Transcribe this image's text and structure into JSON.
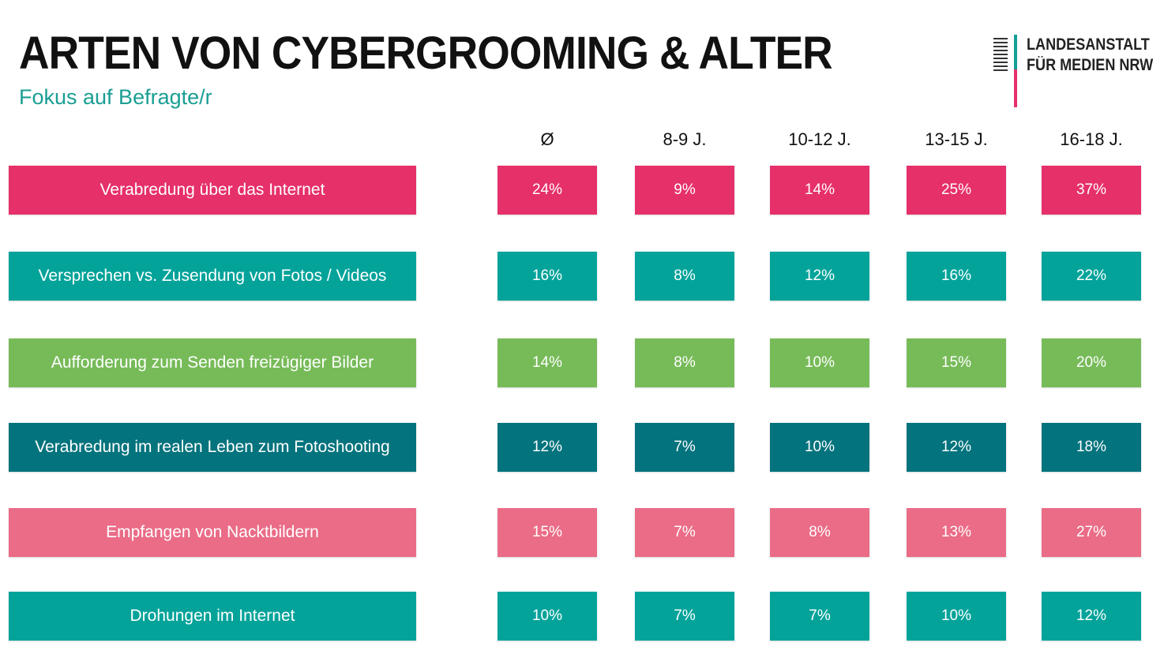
{
  "header": {
    "title": "ARTEN VON CYBERGROOMING & ALTER",
    "subtitle": "Fokus auf Befragte/r"
  },
  "logo": {
    "line1": "LANDESANSTALT",
    "line2": "FÜR MEDIEN NRW"
  },
  "chart_data": {
    "type": "table",
    "columns": [
      "Ø",
      "8-9 J.",
      "10-12 J.",
      "13-15 J.",
      "16-18 J."
    ],
    "rows": [
      {
        "label": "Verabredung über das Internet",
        "color": "#e6306a",
        "values": [
          "24%",
          "9%",
          "14%",
          "25%",
          "37%"
        ]
      },
      {
        "label": "Versprechen vs. Zusendung von Fotos / Videos",
        "color": "#03a39a",
        "values": [
          "16%",
          "8%",
          "12%",
          "16%",
          "22%"
        ]
      },
      {
        "label": "Aufforderung zum Senden freizügiger Bilder",
        "color": "#77bb59",
        "values": [
          "14%",
          "8%",
          "10%",
          "15%",
          "20%"
        ]
      },
      {
        "label": "Verabredung im realen Leben zum Fotoshooting",
        "color": "#03737d",
        "values": [
          "12%",
          "7%",
          "10%",
          "12%",
          "18%"
        ]
      },
      {
        "label": "Empfangen von Nacktbildern",
        "color": "#ea6c87",
        "values": [
          "15%",
          "7%",
          "8%",
          "13%",
          "27%"
        ]
      },
      {
        "label": "Drohungen im Internet",
        "color": "#03a39a",
        "values": [
          "10%",
          "7%",
          "7%",
          "10%",
          "12%"
        ]
      }
    ]
  }
}
